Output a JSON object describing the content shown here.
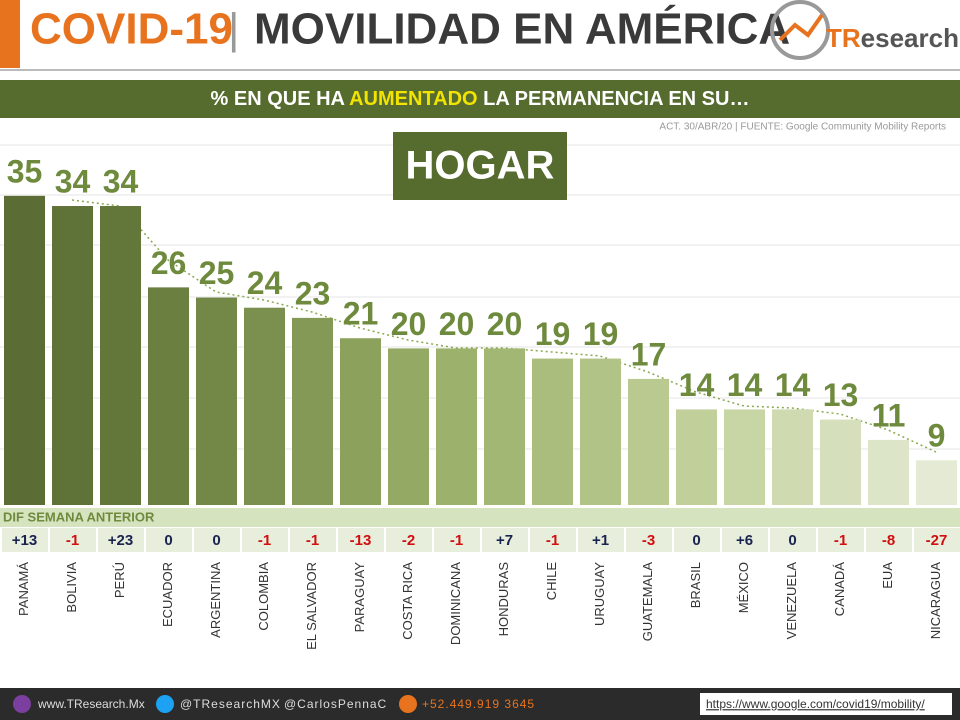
{
  "header": {
    "title_part1": "COVID-19",
    "separator": "|",
    "title_part2": "MOVILIDAD EN AMÉRICA",
    "logo_a": "TR",
    "logo_b": "esearch"
  },
  "subtitle": {
    "part1": "% EN QUE HA",
    "highlight": "AUMENTADO",
    "part2": "LA PERMANENCIA EN SU…"
  },
  "source": "ACT. 30/ABR/20 | FUENTE: Google Community  Mobility Reports",
  "chart_data": {
    "type": "bar",
    "title": "HOGAR",
    "categories": [
      "PANAMÁ",
      "BOLIVIA",
      "PERÚ",
      "ECUADOR",
      "ARGENTINA",
      "COLOMBIA",
      "EL SALVADOR",
      "PARAGUAY",
      "COSTA RICA",
      "DOMINICANA",
      "HONDURAS",
      "CHILE",
      "URUGUAY",
      "GUATEMALA",
      "BRASIL",
      "MÉXICO",
      "VENEZUELA",
      "CANADÁ",
      "EUA",
      "NICARAGUA"
    ],
    "values": [
      35,
      34,
      34,
      26,
      25,
      24,
      23,
      21,
      20,
      20,
      20,
      19,
      19,
      17,
      14,
      14,
      14,
      13,
      11,
      9
    ],
    "colors": [
      "#5b6d34",
      "#5f7238",
      "#63773b",
      "#6b7f40",
      "#738847",
      "#7b904e",
      "#849955",
      "#8ca25c",
      "#94aa64",
      "#9cb16c",
      "#a3b774",
      "#aabd7d",
      "#b1c386",
      "#b9c98f",
      "#c1cf9a",
      "#c8d5a5",
      "#cfdab0",
      "#d6dfbc",
      "#dde5c8",
      "#e4ead4"
    ],
    "label_color": "#6e8a3c",
    "ylim": [
      4.6,
      40
    ],
    "dif_title": "DIF SEMANA ANTERIOR",
    "dif_values": [
      "+13",
      "-1",
      "+23",
      "0",
      "0",
      "-1",
      "-1",
      "-13",
      "-2",
      "-1",
      "+7",
      "-1",
      "+1",
      "-3",
      "0",
      "+6",
      "0",
      "-1",
      "-8",
      "-27"
    ]
  },
  "footer": {
    "web": "www.TResearch.Mx",
    "twitter": "@TResearchMX",
    "personal": "@CarlosPennaC",
    "phone": "+52.449.919 3645",
    "link": "https://www.google.com/covid19/mobility/"
  }
}
